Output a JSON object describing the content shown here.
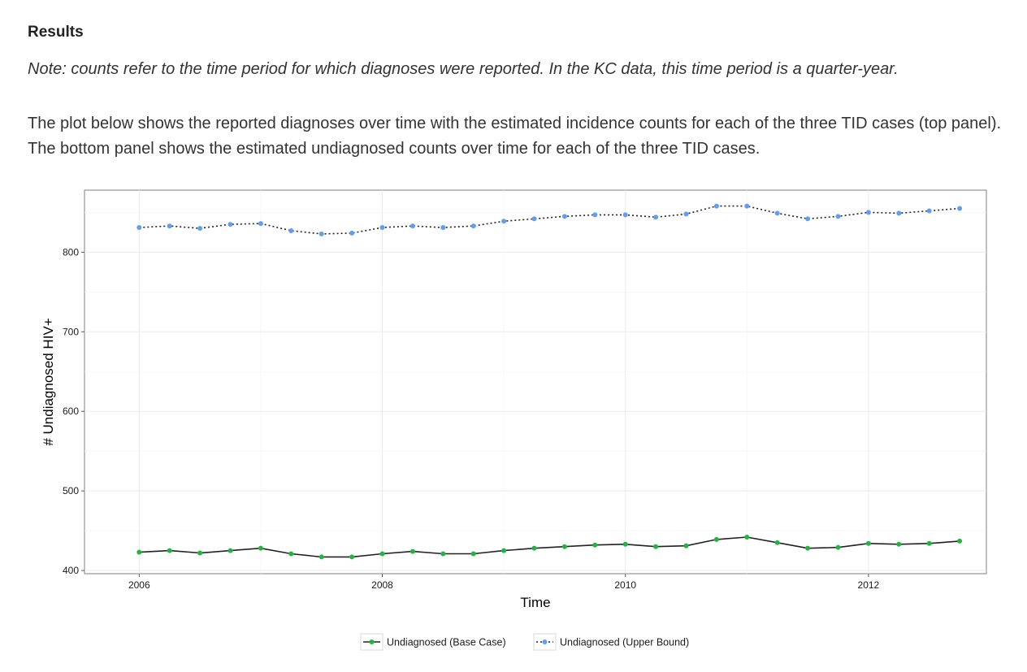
{
  "heading": "Results",
  "note": "Note: counts refer to the time period for which diagnoses were reported. In the KC data, this time period is a quarter-year.",
  "paragraph": "The plot below shows the reported diagnoses over time with the estimated incidence counts for each of the three TID cases (top panel). The bottom panel shows the estimated undiagnosed counts over time for each of the three TID cases.",
  "chart_data": {
    "type": "line",
    "title": "",
    "xlabel": "Time",
    "ylabel": "# Undiagnosed HIV+",
    "xlim": [
      2005.55,
      2012.97
    ],
    "ylim": [
      396,
      878
    ],
    "xticks": [
      2006,
      2008,
      2010,
      2012
    ],
    "yticks": [
      400,
      500,
      600,
      700,
      800
    ],
    "grid": true,
    "legend_position": "bottom",
    "x": [
      2006.0,
      2006.25,
      2006.5,
      2006.75,
      2007.0,
      2007.25,
      2007.5,
      2007.75,
      2008.0,
      2008.25,
      2008.5,
      2008.75,
      2009.0,
      2009.25,
      2009.5,
      2009.75,
      2010.0,
      2010.25,
      2010.5,
      2010.75,
      2011.0,
      2011.25,
      2011.5,
      2011.75,
      2012.0,
      2012.25,
      2012.5,
      2012.75
    ],
    "series": [
      {
        "name": "Undiagnosed (Base Case)",
        "color": "#1fb53f",
        "line_color": "#222222",
        "dash": "solid",
        "values": [
          423,
          425,
          422,
          425,
          428,
          421,
          417,
          417,
          421,
          424,
          421,
          421,
          425,
          428,
          430,
          432,
          433,
          430,
          431,
          439,
          442,
          435,
          428,
          429,
          434,
          433,
          434,
          437
        ]
      },
      {
        "name": "Undiagnosed (Upper Bound)",
        "color": "#5f9ef0",
        "line_color": "#222222",
        "dash": "dotted",
        "values": [
          831,
          833,
          830,
          835,
          836,
          827,
          823,
          824,
          831,
          833,
          831,
          833,
          839,
          842,
          845,
          847,
          847,
          844,
          848,
          858,
          858,
          849,
          842,
          845,
          850,
          849,
          852,
          855
        ]
      }
    ]
  }
}
